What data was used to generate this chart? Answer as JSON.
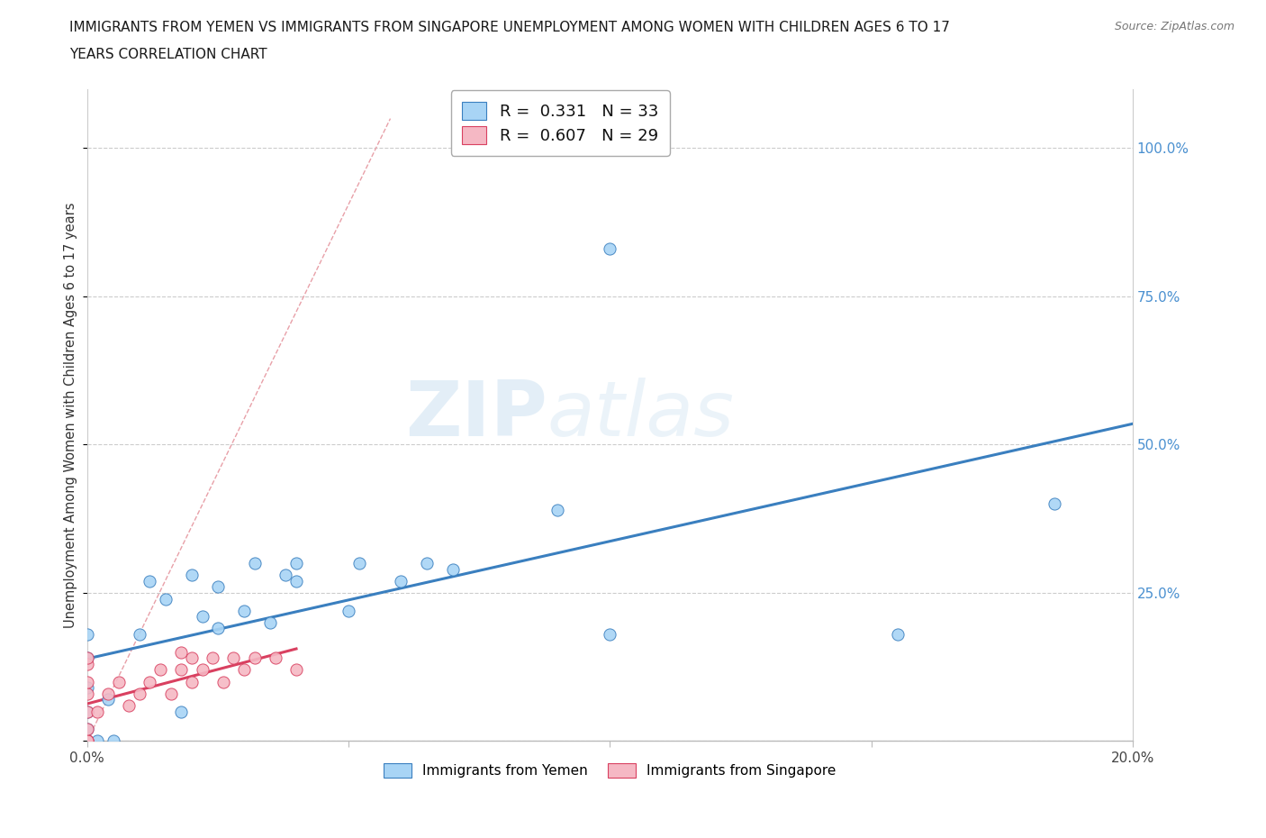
{
  "title_line1": "IMMIGRANTS FROM YEMEN VS IMMIGRANTS FROM SINGAPORE UNEMPLOYMENT AMONG WOMEN WITH CHILDREN AGES 6 TO 17",
  "title_line2": "YEARS CORRELATION CHART",
  "source": "Source: ZipAtlas.com",
  "ylabel": "Unemployment Among Women with Children Ages 6 to 17 years",
  "xlim": [
    0.0,
    0.2
  ],
  "ylim": [
    0.0,
    1.05
  ],
  "xticks": [
    0.0,
    0.05,
    0.1,
    0.15,
    0.2
  ],
  "xtick_labels": [
    "0.0%",
    "",
    "",
    "",
    "20.0%"
  ],
  "ytick_labels": [
    "",
    "25.0%",
    "50.0%",
    "75.0%",
    "100.0%"
  ],
  "yticks": [
    0.0,
    0.25,
    0.5,
    0.75,
    1.0
  ],
  "legend_R1": "0.331",
  "legend_N1": "33",
  "legend_R2": "0.607",
  "legend_N2": "29",
  "color_yemen": "#A8D4F5",
  "color_singapore": "#F5B8C4",
  "color_trend_yemen": "#3A7FBF",
  "color_trend_singapore": "#D94060",
  "color_diagonal": "#E8C0C0",
  "watermark_zip": "ZIP",
  "watermark_atlas": "atlas",
  "yemen_x": [
    0.0,
    0.0,
    0.0,
    0.0,
    0.0,
    0.0,
    0.002,
    0.004,
    0.005,
    0.01,
    0.012,
    0.015,
    0.018,
    0.02,
    0.022,
    0.025,
    0.025,
    0.03,
    0.032,
    0.035,
    0.038,
    0.04,
    0.04,
    0.05,
    0.052,
    0.06,
    0.065,
    0.07,
    0.09,
    0.1,
    0.1,
    0.155,
    0.185
  ],
  "yemen_y": [
    0.0,
    0.02,
    0.05,
    0.09,
    0.14,
    0.18,
    0.0,
    0.07,
    0.0,
    0.18,
    0.27,
    0.24,
    0.05,
    0.28,
    0.21,
    0.19,
    0.26,
    0.22,
    0.3,
    0.2,
    0.28,
    0.27,
    0.3,
    0.22,
    0.3,
    0.27,
    0.3,
    0.29,
    0.39,
    0.18,
    0.83,
    0.18,
    0.4
  ],
  "singapore_x": [
    0.0,
    0.0,
    0.0,
    0.0,
    0.0,
    0.0,
    0.0,
    0.0,
    0.0,
    0.002,
    0.004,
    0.006,
    0.008,
    0.01,
    0.012,
    0.014,
    0.016,
    0.018,
    0.018,
    0.02,
    0.02,
    0.022,
    0.024,
    0.026,
    0.028,
    0.03,
    0.032,
    0.036,
    0.04
  ],
  "singapore_y": [
    0.0,
    0.0,
    0.0,
    0.02,
    0.05,
    0.08,
    0.1,
    0.13,
    0.14,
    0.05,
    0.08,
    0.1,
    0.06,
    0.08,
    0.1,
    0.12,
    0.08,
    0.12,
    0.15,
    0.1,
    0.14,
    0.12,
    0.14,
    0.1,
    0.14,
    0.12,
    0.14,
    0.14,
    0.12
  ],
  "singapore_trend_x": [
    0.0,
    0.04
  ],
  "yemen_trend_x": [
    0.0,
    0.2
  ]
}
